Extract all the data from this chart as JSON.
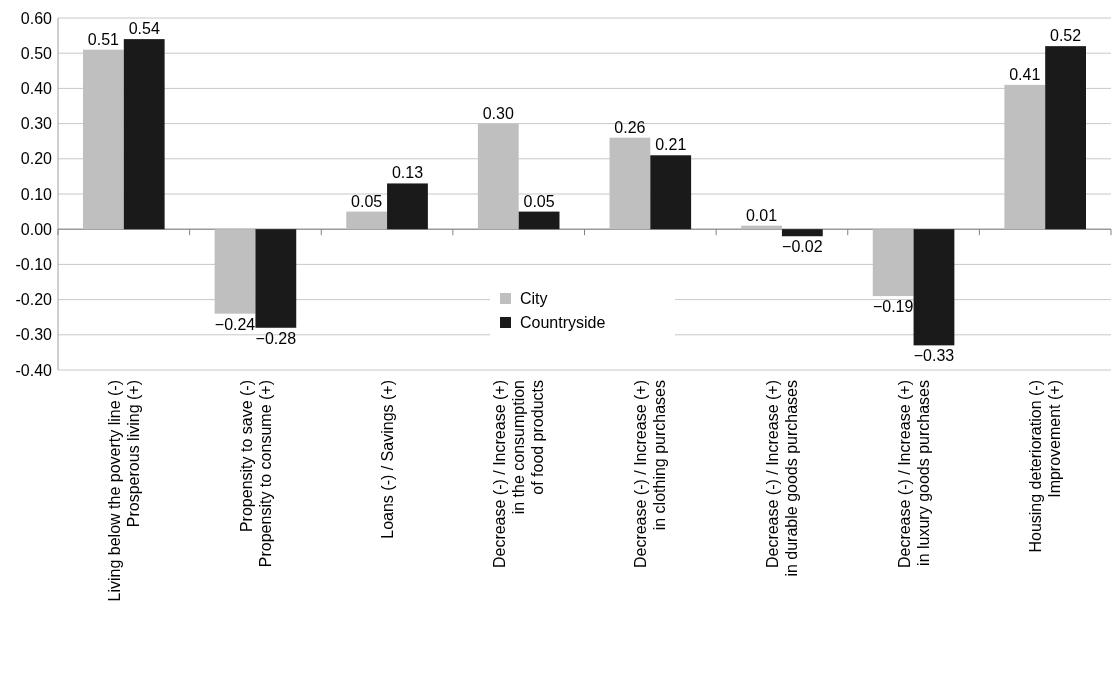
{
  "chart_data": {
    "type": "bar",
    "categories": [
      "Living below the poverty line (-)\nProsperous living (+)",
      "Propensity to save (-)\nPropensity to consume (+)",
      "Loans (-) / Savings (+)",
      "Decrease (-) / Increase (+)\nin the consumption\nof food products",
      "Decrease (-) / Increase (+)\nin clothing purchases",
      "Decrease (-) / Increase (+)\nin durable goods purchases",
      "Decrease (-) / Increase (+)\nin luxury goods purchases",
      "Housing deterioration (-)\nImprovement (+)"
    ],
    "series": [
      {
        "name": "City",
        "color": "#bfbfbf",
        "values": [
          0.51,
          -0.24,
          0.05,
          0.3,
          0.26,
          0.01,
          -0.19,
          0.41
        ],
        "value_labels": [
          "0.51",
          "−0.24",
          "0.05",
          "0.30",
          "0.26",
          "0.01",
          "−0.19",
          "0.41"
        ]
      },
      {
        "name": "Countryside",
        "color": "#1a1a1a",
        "values": [
          0.54,
          -0.28,
          0.13,
          0.05,
          0.21,
          -0.02,
          -0.33,
          0.52
        ],
        "value_labels": [
          "0.54",
          "−0.28",
          "0.13",
          "0.05",
          "0.21",
          "−0.02",
          "−0.33",
          "0.52"
        ]
      }
    ],
    "ylim": [
      -0.4,
      0.6
    ],
    "yticks": [
      {
        "value": 0.6,
        "label": "0.60"
      },
      {
        "value": 0.5,
        "label": "0.50"
      },
      {
        "value": 0.4,
        "label": "0.40"
      },
      {
        "value": 0.3,
        "label": "0.30"
      },
      {
        "value": 0.2,
        "label": "0.20"
      },
      {
        "value": 0.1,
        "label": "0.10"
      },
      {
        "value": 0,
        "label": "0.00"
      },
      {
        "value": -0.1,
        "label": "-0.10"
      },
      {
        "value": -0.2,
        "label": "-0.20"
      },
      {
        "value": -0.3,
        "label": "-0.30"
      },
      {
        "value": -0.4,
        "label": "-0.40"
      }
    ],
    "grid": "y",
    "legend": "bottom"
  }
}
